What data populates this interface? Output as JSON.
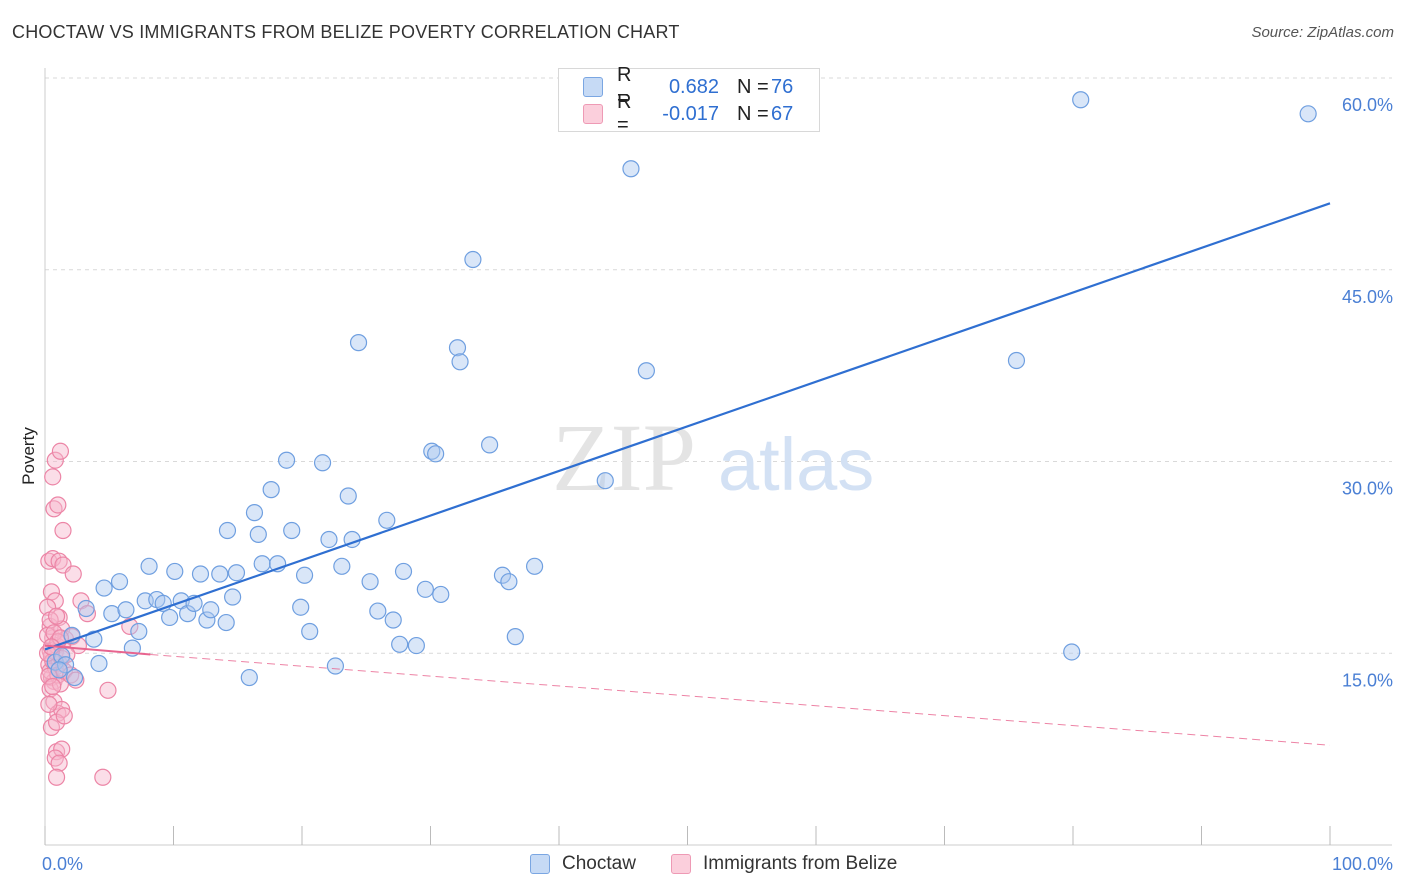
{
  "header": {
    "title": "CHOCTAW VS IMMIGRANTS FROM BELIZE POVERTY CORRELATION CHART",
    "source": "Source: ZipAtlas.com"
  },
  "watermark": {
    "zip": "ZIP",
    "atlas": "atlas"
  },
  "legend": {
    "rows": [
      {
        "r_label": "R =",
        "r_value": "0.682",
        "n_label": "N =",
        "n_value": "76",
        "color": "#aac8f0"
      },
      {
        "r_label": "R =",
        "r_value": "-0.017",
        "n_label": "N =",
        "n_value": "67",
        "color": "#f7b6cb"
      }
    ]
  },
  "bottom_legend": [
    "Choctaw",
    "Immigrants from Belize"
  ],
  "colors": {
    "choctaw_fill": "#aac8f0",
    "choctaw_stroke": "#6f9fe0",
    "choctaw_line": "#2f6fd1",
    "belize_fill": "#f7b6cb",
    "belize_stroke": "#ec85a6",
    "belize_line": "#e8648f",
    "tick_text": "#4a7fd4",
    "grid": "#d9d9d9"
  },
  "chart_data": {
    "type": "scatter",
    "title": "CHOCTAW VS IMMIGRANTS FROM BELIZE POVERTY CORRELATION CHART",
    "xlabel": "",
    "ylabel": "Poverty",
    "xlim": [
      0,
      100
    ],
    "ylim": [
      0,
      60
    ],
    "x_tick_labels": [
      "0.0%",
      "100.0%"
    ],
    "y_ticks": [
      15,
      30,
      45,
      60
    ],
    "y_tick_labels": [
      "15.0%",
      "30.0%",
      "45.0%",
      "60.0%"
    ],
    "grid": true,
    "series": [
      {
        "name": "Choctaw",
        "r": 0.682,
        "n": 76,
        "trend": {
          "x": [
            0,
            100
          ],
          "y": [
            15.3,
            50.2
          ]
        },
        "points": [
          [
            0.8,
            14.3
          ],
          [
            1.3,
            14.8
          ],
          [
            1.6,
            14.1
          ],
          [
            2.1,
            16.4
          ],
          [
            2.3,
            13.1
          ],
          [
            3.2,
            18.5
          ],
          [
            3.8,
            16.1
          ],
          [
            4.2,
            14.2
          ],
          [
            4.6,
            20.1
          ],
          [
            5.2,
            18.1
          ],
          [
            5.8,
            20.6
          ],
          [
            6.3,
            18.4
          ],
          [
            6.8,
            15.4
          ],
          [
            7.3,
            16.7
          ],
          [
            7.8,
            19.1
          ],
          [
            8.1,
            21.8
          ],
          [
            8.7,
            19.2
          ],
          [
            9.2,
            18.9
          ],
          [
            9.7,
            17.8
          ],
          [
            10.1,
            21.4
          ],
          [
            10.6,
            19.1
          ],
          [
            11.1,
            18.1
          ],
          [
            11.6,
            18.9
          ],
          [
            12.1,
            21.2
          ],
          [
            12.6,
            17.6
          ],
          [
            12.9,
            18.4
          ],
          [
            13.6,
            21.2
          ],
          [
            14.1,
            17.4
          ],
          [
            14.6,
            19.4
          ],
          [
            14.9,
            21.3
          ],
          [
            15.9,
            13.1
          ],
          [
            14.2,
            24.6
          ],
          [
            16.6,
            24.3
          ],
          [
            16.9,
            22.0
          ],
          [
            16.3,
            26.0
          ],
          [
            17.6,
            27.8
          ],
          [
            18.1,
            22.0
          ],
          [
            18.8,
            30.1
          ],
          [
            19.2,
            24.6
          ],
          [
            19.9,
            18.6
          ],
          [
            20.2,
            21.1
          ],
          [
            20.6,
            16.7
          ],
          [
            21.6,
            29.9
          ],
          [
            22.1,
            23.9
          ],
          [
            22.6,
            14.0
          ],
          [
            23.1,
            21.8
          ],
          [
            23.6,
            27.3
          ],
          [
            23.9,
            23.9
          ],
          [
            24.4,
            39.3
          ],
          [
            25.3,
            20.6
          ],
          [
            25.9,
            18.3
          ],
          [
            26.6,
            25.4
          ],
          [
            27.1,
            17.6
          ],
          [
            27.6,
            15.7
          ],
          [
            27.9,
            21.4
          ],
          [
            28.9,
            15.6
          ],
          [
            29.6,
            20.0
          ],
          [
            30.1,
            30.8
          ],
          [
            30.4,
            30.6
          ],
          [
            30.8,
            19.6
          ],
          [
            32.1,
            38.9
          ],
          [
            32.3,
            37.8
          ],
          [
            33.3,
            45.8
          ],
          [
            34.6,
            31.3
          ],
          [
            35.6,
            21.1
          ],
          [
            36.1,
            20.6
          ],
          [
            36.6,
            16.3
          ],
          [
            38.1,
            21.8
          ],
          [
            43.6,
            28.5
          ],
          [
            45.6,
            52.9
          ],
          [
            46.8,
            37.1
          ],
          [
            75.6,
            37.9
          ],
          [
            80.6,
            58.3
          ],
          [
            79.9,
            15.1
          ],
          [
            98.3,
            57.2
          ],
          [
            1.1,
            13.7
          ]
        ]
      },
      {
        "name": "Immigrants from Belize",
        "r": -0.017,
        "n": 67,
        "trend": {
          "x": [
            0,
            8.2,
            100
          ],
          "y": [
            15.6,
            14.9,
            7.8
          ]
        },
        "trend_solid_until_x": 8.2,
        "points": [
          [
            0.3,
            14.1
          ],
          [
            0.4,
            15.2
          ],
          [
            0.5,
            13.1
          ],
          [
            0.6,
            16.2
          ],
          [
            0.4,
            17.1
          ],
          [
            0.7,
            12.8
          ],
          [
            0.8,
            13.9
          ],
          [
            0.5,
            14.8
          ],
          [
            0.9,
            15.6
          ],
          [
            1.1,
            14.2
          ],
          [
            0.3,
            22.2
          ],
          [
            0.6,
            28.8
          ],
          [
            0.8,
            30.1
          ],
          [
            1.2,
            30.8
          ],
          [
            0.7,
            26.3
          ],
          [
            1.0,
            26.6
          ],
          [
            1.4,
            24.6
          ],
          [
            0.6,
            22.4
          ],
          [
            1.1,
            22.2
          ],
          [
            1.4,
            21.9
          ],
          [
            0.5,
            19.8
          ],
          [
            0.8,
            19.1
          ],
          [
            1.1,
            17.8
          ],
          [
            1.3,
            16.9
          ],
          [
            0.4,
            12.2
          ],
          [
            0.7,
            11.2
          ],
          [
            1.0,
            10.3
          ],
          [
            1.3,
            10.6
          ],
          [
            0.5,
            9.2
          ],
          [
            0.9,
            7.3
          ],
          [
            1.3,
            7.5
          ],
          [
            0.8,
            6.8
          ],
          [
            1.1,
            6.4
          ],
          [
            0.9,
            5.3
          ],
          [
            4.5,
            5.3
          ],
          [
            4.9,
            12.1
          ],
          [
            2.2,
            21.2
          ],
          [
            2.8,
            19.1
          ],
          [
            3.3,
            18.1
          ],
          [
            6.6,
            17.1
          ],
          [
            1.6,
            16.1
          ],
          [
            2.1,
            16.3
          ],
          [
            2.6,
            15.6
          ],
          [
            0.2,
            16.4
          ],
          [
            0.4,
            13.6
          ],
          [
            0.6,
            14.4
          ],
          [
            0.8,
            15.1
          ],
          [
            1.0,
            13.3
          ],
          [
            1.2,
            12.6
          ],
          [
            0.3,
            11.0
          ],
          [
            0.9,
            9.6
          ],
          [
            1.5,
            10.1
          ],
          [
            0.2,
            18.6
          ],
          [
            0.4,
            17.6
          ],
          [
            0.7,
            16.6
          ],
          [
            1.0,
            15.9
          ],
          [
            1.3,
            14.6
          ],
          [
            1.5,
            13.6
          ],
          [
            2.0,
            13.3
          ],
          [
            2.4,
            12.9
          ],
          [
            0.3,
            13.2
          ],
          [
            0.6,
            12.4
          ],
          [
            0.9,
            17.9
          ],
          [
            1.2,
            16.2
          ],
          [
            1.7,
            14.9
          ],
          [
            0.2,
            15.0
          ],
          [
            0.5,
            15.5
          ]
        ]
      }
    ]
  }
}
